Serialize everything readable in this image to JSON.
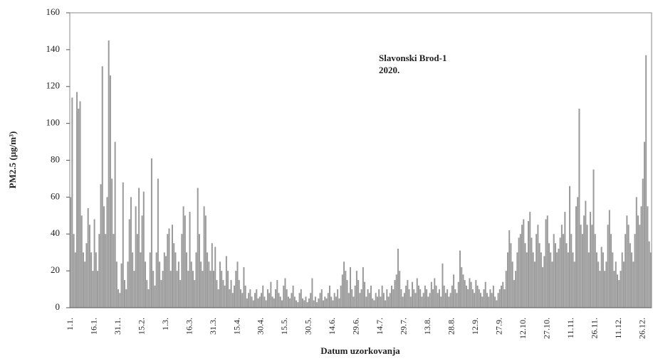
{
  "chart_data": {
    "type": "bar",
    "y_label": "PM2.5 (µg/m³)",
    "x_label": "Datum uzorkovanja",
    "annotations": [
      "Slavonski Brod-1",
      "2020."
    ],
    "color": "#9a9a9a",
    "ylim": [
      0,
      160
    ],
    "yticks": [
      0,
      20,
      40,
      60,
      80,
      100,
      120,
      140,
      160
    ],
    "categories": [
      "1.1.",
      null,
      null,
      null,
      null,
      null,
      null,
      null,
      null,
      null,
      null,
      null,
      null,
      null,
      null,
      "16.1.",
      null,
      null,
      null,
      null,
      null,
      null,
      null,
      null,
      null,
      null,
      null,
      null,
      null,
      null,
      "31.1.",
      null,
      null,
      null,
      null,
      null,
      null,
      null,
      null,
      null,
      null,
      null,
      null,
      null,
      null,
      "15.2.",
      null,
      null,
      null,
      null,
      null,
      null,
      null,
      null,
      null,
      null,
      null,
      null,
      null,
      null,
      "1.3.",
      null,
      null,
      null,
      null,
      null,
      null,
      null,
      null,
      null,
      null,
      null,
      null,
      null,
      null,
      "16.3.",
      null,
      null,
      null,
      null,
      null,
      null,
      null,
      null,
      null,
      null,
      null,
      null,
      null,
      null,
      "31.3.",
      null,
      null,
      null,
      null,
      null,
      null,
      null,
      null,
      null,
      null,
      null,
      null,
      null,
      null,
      "15.4.",
      null,
      null,
      null,
      null,
      null,
      null,
      null,
      null,
      null,
      null,
      null,
      null,
      null,
      null,
      "30.4.",
      null,
      null,
      null,
      null,
      null,
      null,
      null,
      null,
      null,
      null,
      null,
      null,
      null,
      null,
      "15.5.",
      null,
      null,
      null,
      null,
      null,
      null,
      null,
      null,
      null,
      null,
      null,
      null,
      null,
      null,
      "30.5.",
      null,
      null,
      null,
      null,
      null,
      null,
      null,
      null,
      null,
      null,
      null,
      null,
      null,
      null,
      "14.6.",
      null,
      null,
      null,
      null,
      null,
      null,
      null,
      null,
      null,
      null,
      null,
      null,
      null,
      null,
      "29.6.",
      null,
      null,
      null,
      null,
      null,
      null,
      null,
      null,
      null,
      null,
      null,
      null,
      null,
      null,
      "14.7.",
      null,
      null,
      null,
      null,
      null,
      null,
      null,
      null,
      null,
      null,
      null,
      null,
      null,
      null,
      "29.7.",
      null,
      null,
      null,
      null,
      null,
      null,
      null,
      null,
      null,
      null,
      null,
      null,
      null,
      null,
      "13.8.",
      null,
      null,
      null,
      null,
      null,
      null,
      null,
      null,
      null,
      null,
      null,
      null,
      null,
      null,
      "28.8.",
      null,
      null,
      null,
      null,
      null,
      null,
      null,
      null,
      null,
      null,
      null,
      null,
      null,
      null,
      "12.9.",
      null,
      null,
      null,
      null,
      null,
      null,
      null,
      null,
      null,
      null,
      null,
      null,
      null,
      null,
      "27.9.",
      null,
      null,
      null,
      null,
      null,
      null,
      null,
      null,
      null,
      null,
      null,
      null,
      null,
      null,
      "12.10.",
      null,
      null,
      null,
      null,
      null,
      null,
      null,
      null,
      null,
      null,
      null,
      null,
      null,
      null,
      "27.10.",
      null,
      null,
      null,
      null,
      null,
      null,
      null,
      null,
      null,
      null,
      null,
      null,
      null,
      null,
      "11.11.",
      null,
      null,
      null,
      null,
      null,
      null,
      null,
      null,
      null,
      null,
      null,
      null,
      null,
      null,
      "26.11.",
      null,
      null,
      null,
      null,
      null,
      null,
      null,
      null,
      null,
      null,
      null,
      null,
      null,
      null,
      "11.12.",
      null,
      null,
      null,
      null,
      null,
      null,
      null,
      null,
      null,
      null,
      null,
      null,
      null,
      null,
      "26.12.",
      null,
      null,
      null,
      null,
      null
    ],
    "values": [
      60,
      114,
      40,
      30,
      117,
      108,
      112,
      50,
      30,
      25,
      35,
      54,
      45,
      30,
      20,
      48,
      30,
      20,
      40,
      67,
      131,
      55,
      40,
      60,
      145,
      126,
      70,
      40,
      90,
      25,
      10,
      8,
      24,
      68,
      15,
      10,
      25,
      48,
      60,
      30,
      20,
      55,
      40,
      65,
      30,
      50,
      63,
      25,
      15,
      10,
      30,
      81,
      20,
      12,
      30,
      70,
      25,
      15,
      20,
      30,
      28,
      40,
      43,
      20,
      45,
      35,
      30,
      20,
      25,
      15,
      40,
      55,
      50,
      30,
      20,
      52,
      25,
      20,
      15,
      30,
      65,
      40,
      25,
      20,
      55,
      50,
      30,
      25,
      20,
      35,
      20,
      33,
      15,
      10,
      25,
      20,
      15,
      12,
      28,
      20,
      10,
      15,
      8,
      12,
      20,
      25,
      15,
      10,
      8,
      22,
      12,
      5,
      8,
      10,
      6,
      4,
      8,
      10,
      5,
      6,
      8,
      12,
      6,
      4,
      10,
      8,
      14,
      6,
      5,
      10,
      15,
      8,
      6,
      4,
      12,
      16,
      10,
      6,
      5,
      8,
      12,
      6,
      4,
      3,
      8,
      10,
      5,
      4,
      6,
      3,
      5,
      8,
      16,
      4,
      6,
      3,
      5,
      8,
      10,
      4,
      6,
      5,
      8,
      12,
      6,
      4,
      8,
      6,
      10,
      5,
      12,
      18,
      25,
      20,
      15,
      8,
      22,
      10,
      6,
      12,
      20,
      15,
      8,
      10,
      22,
      14,
      6,
      10,
      8,
      12,
      5,
      4,
      8,
      6,
      10,
      6,
      12,
      8,
      4,
      10,
      6,
      8,
      12,
      10,
      15,
      18,
      32,
      20,
      10,
      6,
      8,
      12,
      15,
      10,
      6,
      14,
      10,
      8,
      16,
      12,
      10,
      6,
      8,
      12,
      10,
      6,
      8,
      14,
      10,
      16,
      12,
      8,
      10,
      6,
      24,
      12,
      8,
      10,
      6,
      8,
      12,
      18,
      10,
      8,
      14,
      31,
      22,
      18,
      15,
      12,
      10,
      16,
      14,
      10,
      8,
      15,
      12,
      10,
      8,
      6,
      10,
      14,
      8,
      6,
      10,
      8,
      12,
      6,
      4,
      8,
      10,
      12,
      14,
      10,
      20,
      30,
      42,
      35,
      25,
      15,
      20,
      30,
      38,
      40,
      45,
      48,
      35,
      30,
      47,
      52,
      38,
      30,
      25,
      40,
      45,
      35,
      30,
      22,
      28,
      48,
      50,
      35,
      30,
      25,
      40,
      35,
      30,
      32,
      38,
      45,
      40,
      52,
      35,
      30,
      66,
      40,
      30,
      25,
      55,
      60,
      108,
      45,
      40,
      50,
      58,
      45,
      30,
      52,
      45,
      75,
      40,
      30,
      25,
      20,
      33,
      30,
      20,
      25,
      45,
      53,
      40,
      30,
      20,
      25,
      18,
      15,
      20,
      30,
      25,
      40,
      50,
      45,
      35,
      30,
      25,
      40,
      60,
      50,
      45,
      55,
      70,
      90,
      137,
      55,
      36,
      30
    ]
  }
}
